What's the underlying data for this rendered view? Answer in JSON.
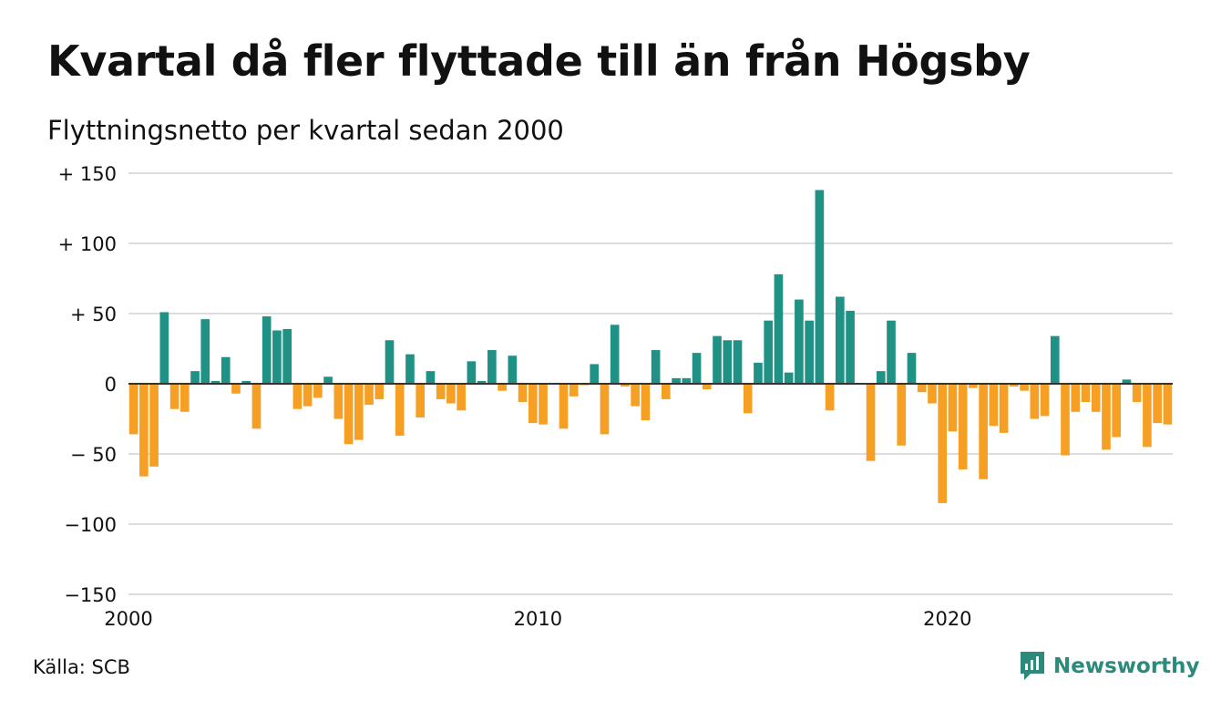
{
  "title": "Kvartal då fler flyttade till än från Högsby",
  "subtitle": "Flyttningsnetto per kvartal sedan 2000",
  "source": "Källa: SCB",
  "brand": "Newsworthy",
  "colors": {
    "positive": "#1f9185",
    "negative": "#f5a024",
    "grid": "#dddddd",
    "baseline": "#333333",
    "brand": "#2b8a7a"
  },
  "chart_data": {
    "type": "bar",
    "x_start_year": 2000,
    "x_end": 2025.5,
    "periods_per_year": 4,
    "xticks": [
      2000,
      2010,
      2020
    ],
    "xtick_labels": [
      "2000",
      "2010",
      "2020"
    ],
    "ylim": [
      -150,
      150
    ],
    "yticks": [
      150,
      100,
      50,
      0,
      -50,
      -100,
      -150
    ],
    "ytick_labels": [
      "+ 150",
      "+ 100",
      "+  50",
      "0",
      "− 50",
      "−100",
      "−150"
    ],
    "grid": true,
    "values": [
      -36,
      -66,
      -59,
      51,
      -18,
      -20,
      9,
      46,
      2,
      19,
      -7,
      2,
      -32,
      48,
      38,
      39,
      -18,
      -16,
      -10,
      5,
      -25,
      -43,
      -40,
      -15,
      -11,
      31,
      -37,
      21,
      -24,
      9,
      -11,
      -14,
      -19,
      16,
      2,
      24,
      -5,
      20,
      -13,
      -28,
      -29,
      0,
      -32,
      -9,
      -1,
      14,
      -36,
      42,
      -2,
      -16,
      -26,
      24,
      -11,
      4,
      4,
      22,
      -4,
      34,
      31,
      31,
      -21,
      15,
      45,
      78,
      8,
      60,
      45,
      138,
      -19,
      62,
      52,
      0,
      -55,
      9,
      45,
      -44,
      22,
      -6,
      -14,
      -85,
      -34,
      -61,
      -3,
      -68,
      -30,
      -35,
      -2,
      -5,
      -25,
      -23,
      34,
      -51,
      -20,
      -13,
      -20,
      -47,
      -38,
      3,
      -13,
      -45,
      -28,
      -29
    ]
  }
}
